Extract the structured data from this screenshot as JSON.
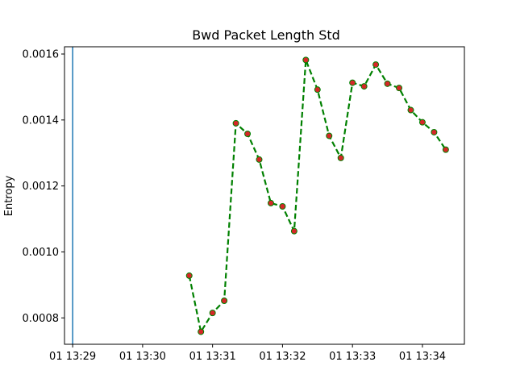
{
  "chart_data": {
    "type": "line",
    "title": "Bwd Packet Length Std",
    "xlabel": "",
    "ylabel": "Entropy",
    "x_ticks": [
      "01 13:29",
      "01 13:30",
      "01 13:31",
      "01 13:32",
      "01 13:33",
      "01 13:34"
    ],
    "y_ticks": [
      "0.0008",
      "0.0010",
      "0.0012",
      "0.0014",
      "0.0016"
    ],
    "xlim": [
      "13:28:53",
      "13:34:36"
    ],
    "ylim": [
      0.00072,
      0.001622
    ],
    "grid": false,
    "marker_line_time": "13:29:00",
    "series": [
      {
        "line_color": "#008000",
        "line_style": "dashed",
        "marker_face_color": "#d62728",
        "marker_edge_color": "#008000",
        "x": [
          "13:30:40",
          "13:30:50",
          "13:31:00",
          "13:31:10",
          "13:31:20",
          "13:31:30",
          "13:31:40",
          "13:31:50",
          "13:32:00",
          "13:32:10",
          "13:32:20",
          "13:32:30",
          "13:32:40",
          "13:32:50",
          "13:33:00",
          "13:33:10",
          "13:33:20",
          "13:33:30",
          "13:33:40",
          "13:33:50",
          "13:34:00",
          "13:34:10",
          "13:34:20"
        ],
        "values": [
          0.000928,
          0.000758,
          0.000815,
          0.000852,
          0.00139,
          0.001358,
          0.00128,
          0.001148,
          0.001138,
          0.001063,
          0.001582,
          0.001492,
          0.001352,
          0.001285,
          0.001513,
          0.001502,
          0.001568,
          0.00151,
          0.001497,
          0.00143,
          0.001393,
          0.001363,
          0.00131
        ]
      }
    ]
  }
}
